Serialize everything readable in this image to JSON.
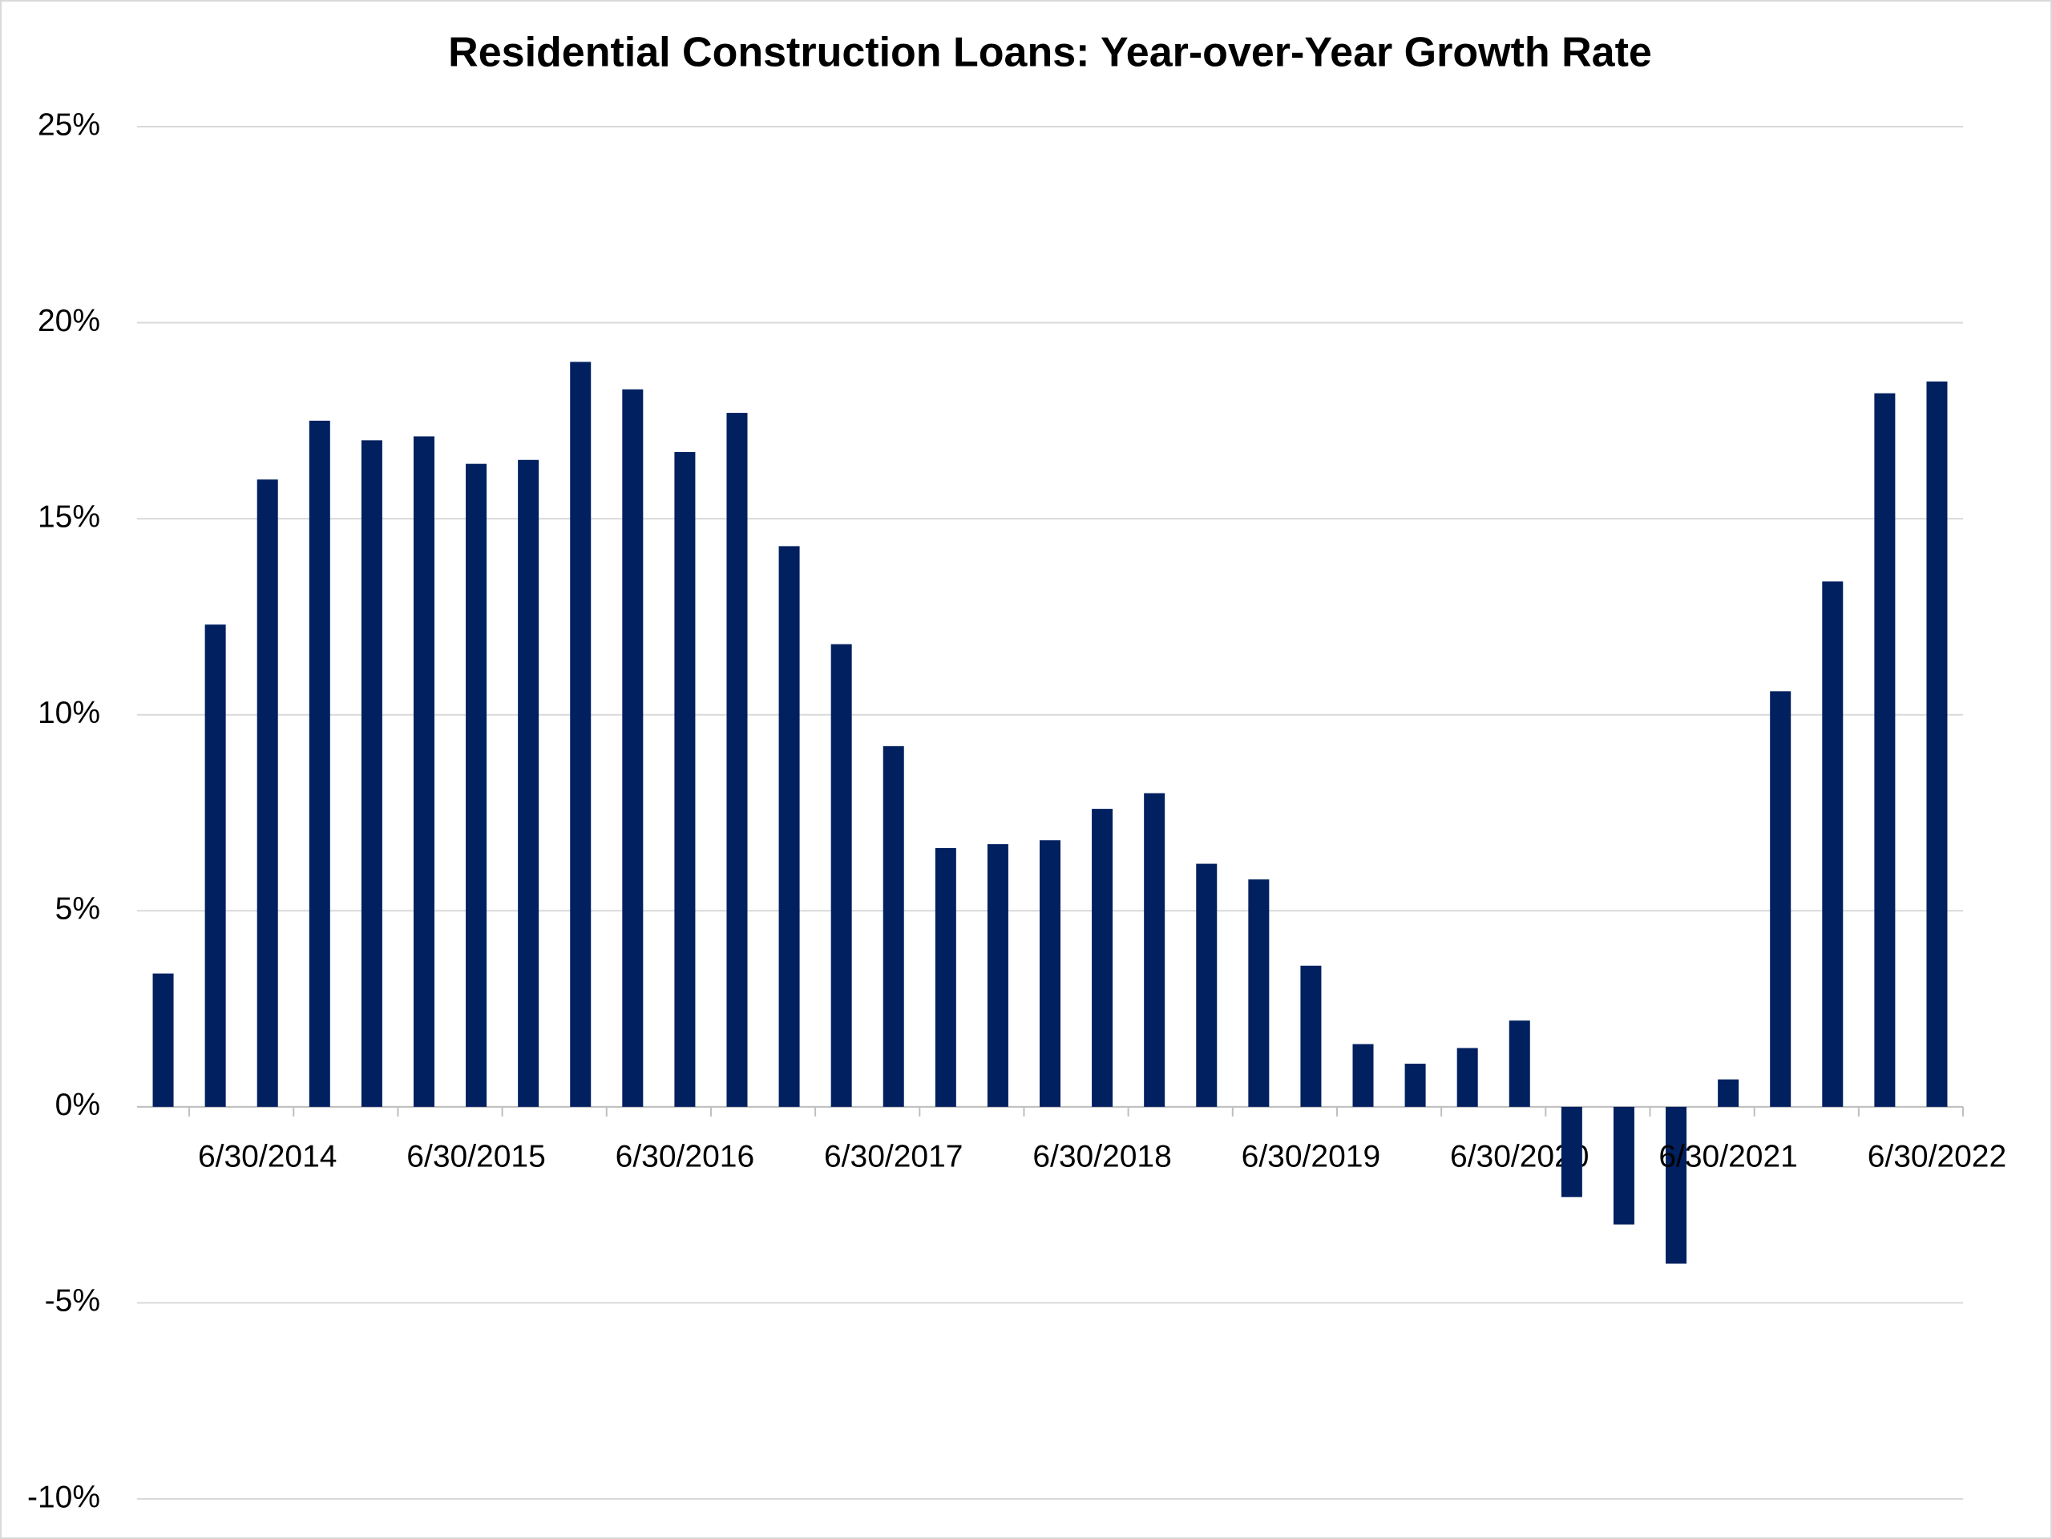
{
  "chart_data": {
    "type": "bar",
    "title": "Residential Construction Loans: Year-over-Year Growth Rate",
    "categories": [
      null,
      null,
      "6/30/2014",
      null,
      null,
      null,
      "6/30/2015",
      null,
      null,
      null,
      "6/30/2016",
      null,
      null,
      null,
      "6/30/2017",
      null,
      null,
      null,
      "6/30/2018",
      null,
      null,
      null,
      "6/30/2019",
      null,
      null,
      null,
      "6/30/2020",
      null,
      null,
      null,
      "6/30/2021",
      null,
      null,
      null,
      "6/30/2022"
    ],
    "values": [
      3.4,
      12.3,
      16.0,
      17.5,
      17.0,
      17.1,
      16.4,
      16.5,
      19.0,
      18.3,
      16.7,
      17.7,
      14.3,
      11.8,
      9.2,
      6.6,
      6.7,
      6.8,
      7.6,
      8.0,
      6.2,
      5.8,
      3.6,
      1.6,
      1.1,
      1.5,
      2.2,
      -2.3,
      -3.0,
      -4.0,
      0.7,
      10.6,
      13.4,
      18.2,
      18.5
    ],
    "color": "#002060",
    "ylim": [
      -10,
      25
    ],
    "yticks": [
      {
        "value": -10,
        "label": "-10%"
      },
      {
        "value": -5,
        "label": "-5%"
      },
      {
        "value": 0,
        "label": "0%"
      },
      {
        "value": 5,
        "label": "5%"
      },
      {
        "value": 10,
        "label": "10%"
      },
      {
        "value": 15,
        "label": "15%"
      },
      {
        "value": 20,
        "label": "20%"
      },
      {
        "value": 25,
        "label": "25%"
      }
    ],
    "grid": true
  }
}
